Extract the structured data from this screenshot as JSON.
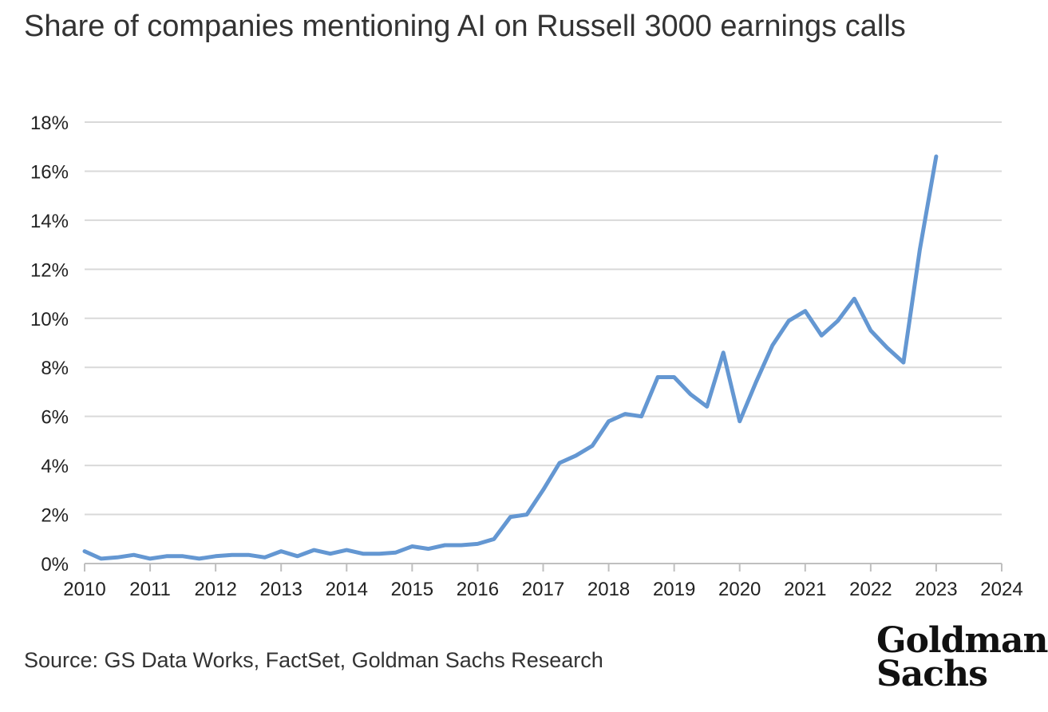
{
  "chart_data": {
    "type": "line",
    "title": "Share of companies mentioning AI on Russell 3000 earnings calls",
    "xlabel": "",
    "ylabel": "",
    "xlim": [
      2010,
      2024
    ],
    "ylim": [
      0,
      18
    ],
    "x_ticks": [
      "2010",
      "2011",
      "2012",
      "2013",
      "2014",
      "2015",
      "2016",
      "2017",
      "2018",
      "2019",
      "2020",
      "2021",
      "2022",
      "2023",
      "2024"
    ],
    "y_ticks": [
      "0%",
      "2%",
      "4%",
      "6%",
      "8%",
      "10%",
      "12%",
      "14%",
      "16%",
      "18%"
    ],
    "grid": "horizontal",
    "series_color": "#6497d2",
    "series": [
      {
        "x": [
          2010.0,
          2010.25,
          2010.5,
          2010.75,
          2011.0,
          2011.25,
          2011.5,
          2011.75,
          2012.0,
          2012.25,
          2012.5,
          2012.75,
          2013.0,
          2013.25,
          2013.5,
          2013.75,
          2014.0,
          2014.25,
          2014.5,
          2014.75,
          2015.0,
          2015.25,
          2015.5,
          2015.75,
          2016.0,
          2016.25,
          2016.5,
          2016.75,
          2017.0,
          2017.25,
          2017.5,
          2017.75,
          2018.0,
          2018.25,
          2018.5,
          2018.75,
          2019.0,
          2019.25,
          2019.5,
          2019.75,
          2020.0,
          2020.25,
          2020.5,
          2020.75,
          2021.0,
          2021.25,
          2021.5,
          2021.75,
          2022.0,
          2022.25,
          2022.5,
          2022.75,
          2023.0
        ],
        "y": [
          0.5,
          0.2,
          0.25,
          0.35,
          0.2,
          0.3,
          0.3,
          0.2,
          0.3,
          0.35,
          0.35,
          0.25,
          0.5,
          0.3,
          0.55,
          0.4,
          0.55,
          0.4,
          0.4,
          0.45,
          0.7,
          0.6,
          0.75,
          0.75,
          0.8,
          1.0,
          1.9,
          2.0,
          3.0,
          4.1,
          4.4,
          4.8,
          5.8,
          6.1,
          6.0,
          7.6,
          7.6,
          6.9,
          6.4,
          8.6,
          5.8,
          7.4,
          8.9,
          9.9,
          10.3,
          9.3,
          9.9,
          10.8,
          9.5,
          8.8,
          8.2,
          12.8,
          16.6
        ]
      }
    ]
  },
  "source": "Source: GS Data Works, FactSet, Goldman Sachs Research",
  "logo": {
    "line1": "Goldman",
    "line2": "Sachs"
  }
}
